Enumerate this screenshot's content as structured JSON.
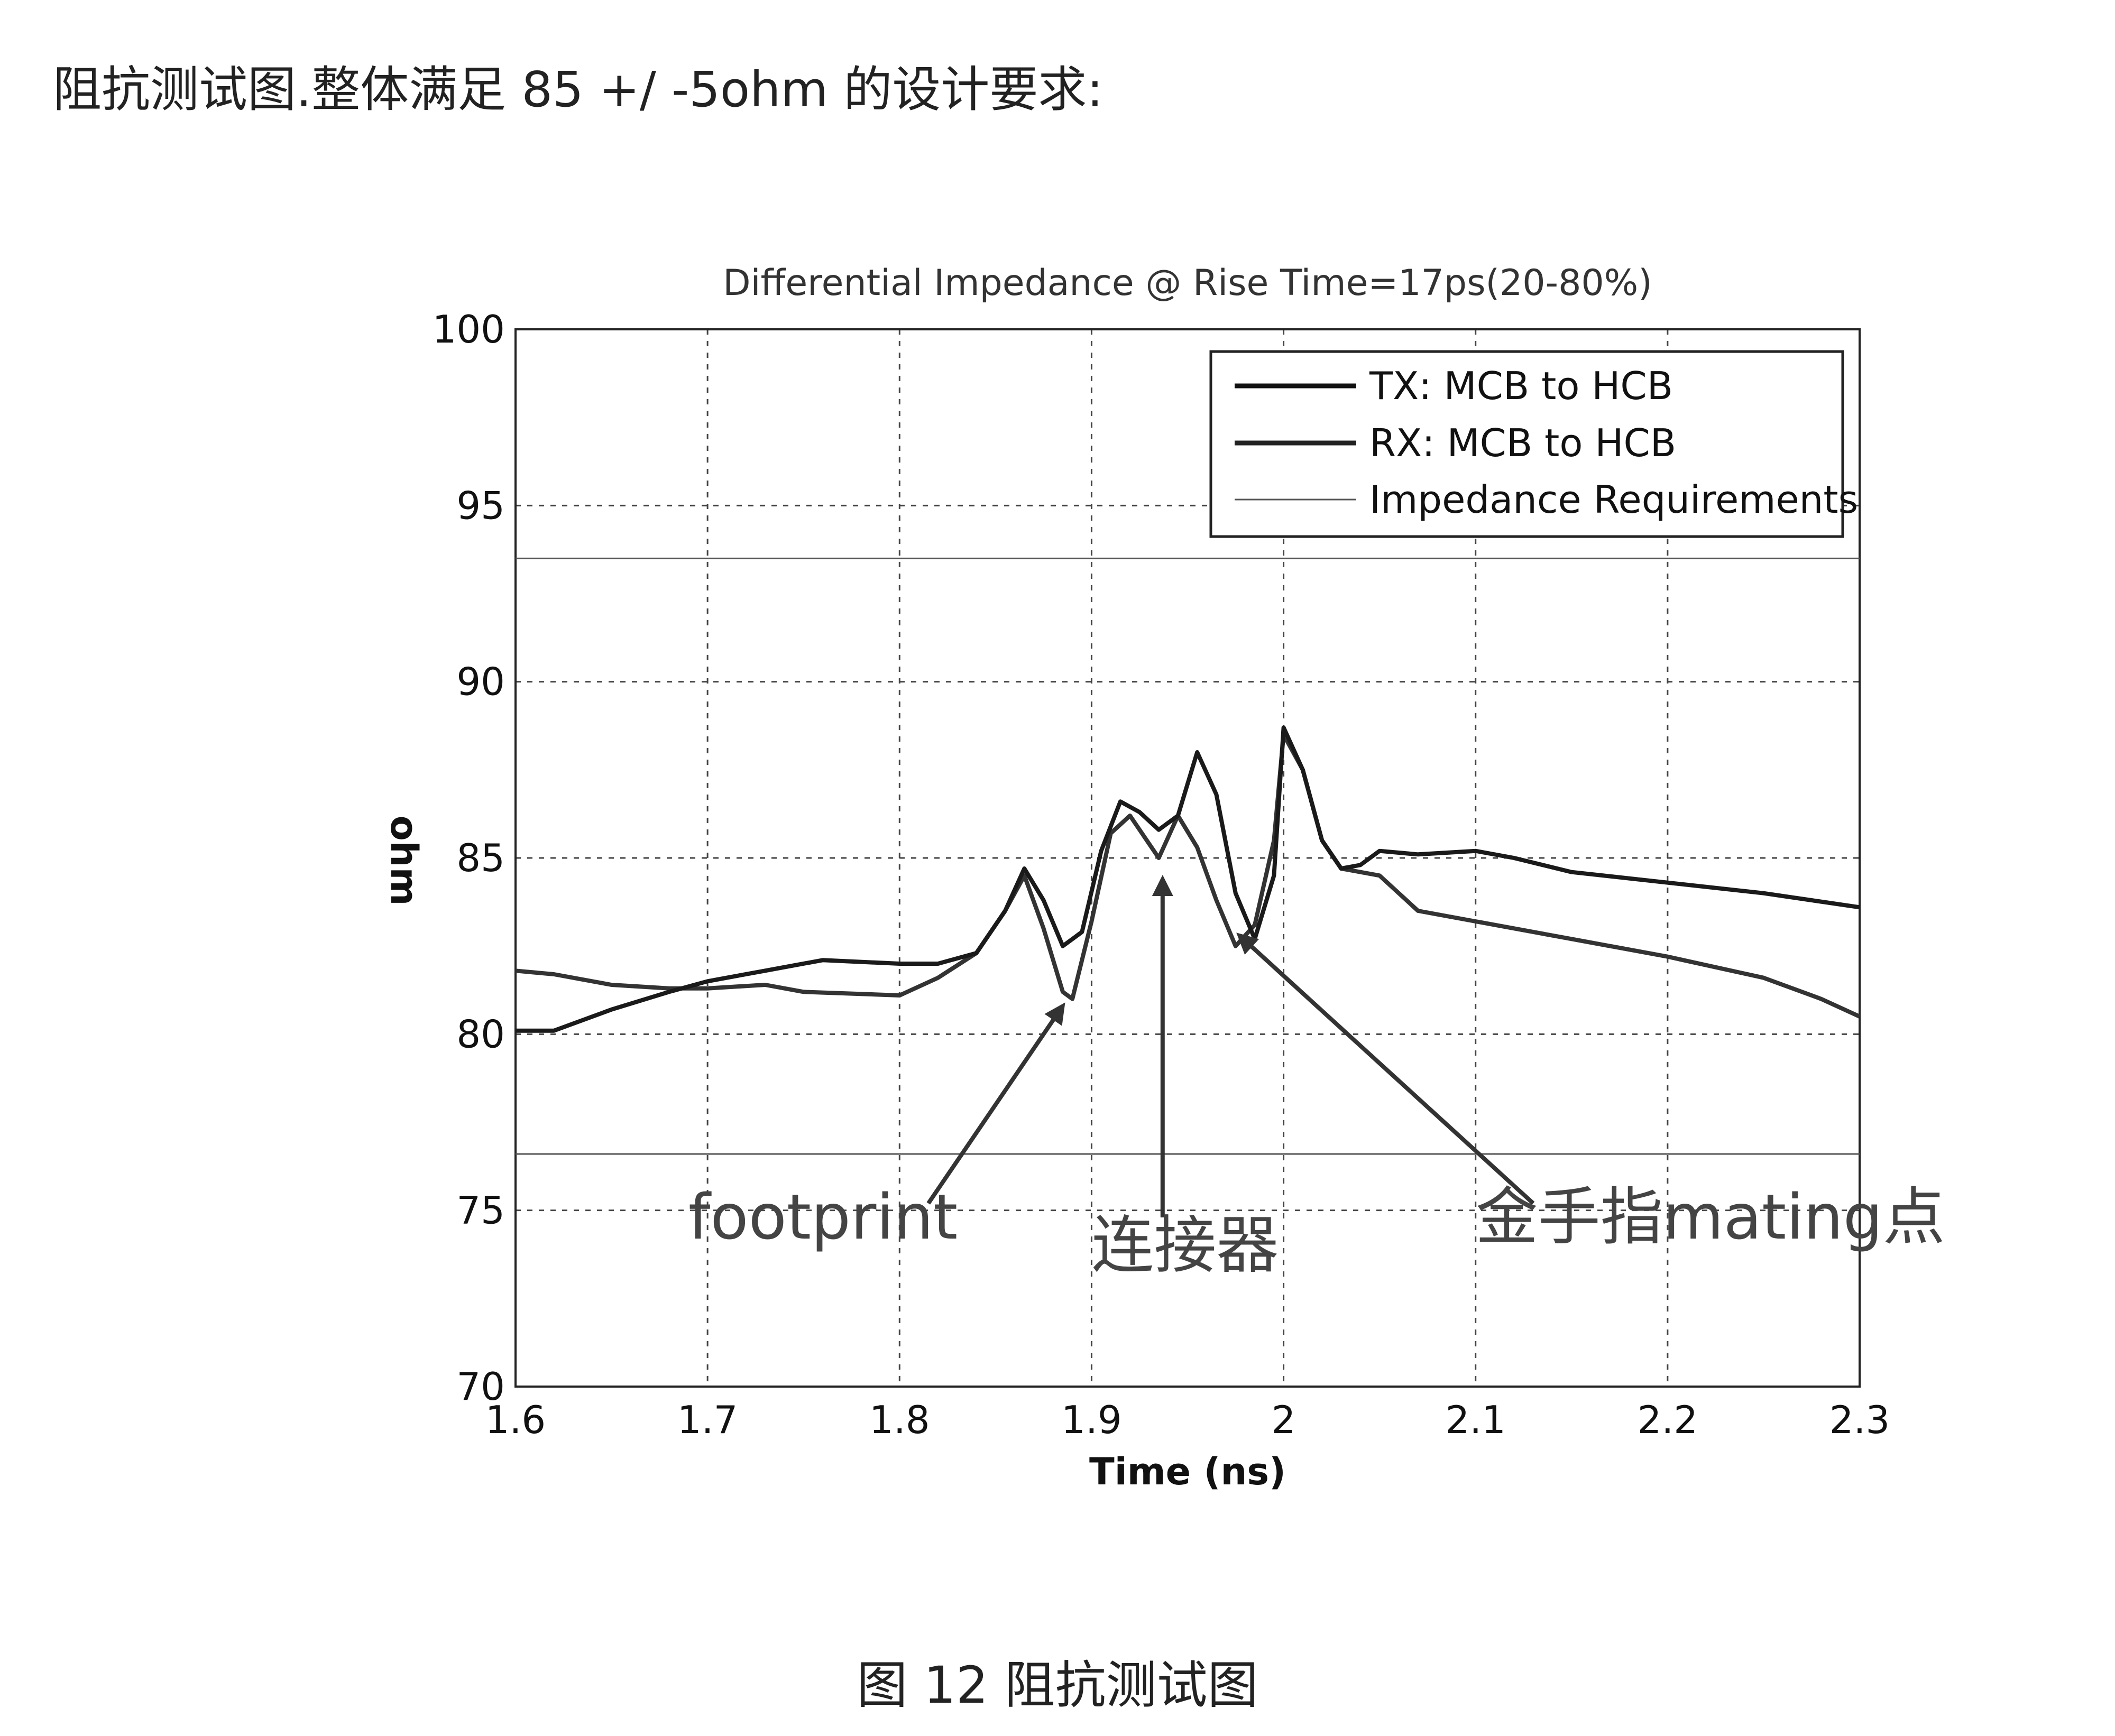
{
  "heading": "阻抗测试图.整体满足 85 +/ -5ohm 的设计要求:",
  "caption": "图 12 阻抗测试图",
  "chart_data": {
    "type": "line",
    "title": "Differential Impedance @ Rise Time=17ps(20-80%)",
    "xlabel": "Time (ns)",
    "ylabel": "ohm",
    "xlim": [
      1.6,
      2.3
    ],
    "ylim": [
      70,
      100
    ],
    "xticks": [
      "1.6",
      "1.7",
      "1.8",
      "1.9",
      "2",
      "2.1",
      "2.2",
      "2.3"
    ],
    "yticks": [
      "70",
      "75",
      "80",
      "85",
      "90",
      "95",
      "100"
    ],
    "grid": true,
    "legend_position": "top-right",
    "series": [
      {
        "name": "TX: MCB to HCB",
        "color": "#1a1a1a",
        "x": [
          1.6,
          1.62,
          1.65,
          1.68,
          1.7,
          1.73,
          1.76,
          1.8,
          1.82,
          1.84,
          1.855,
          1.865,
          1.875,
          1.885,
          1.895,
          1.905,
          1.915,
          1.925,
          1.935,
          1.945,
          1.955,
          1.965,
          1.975,
          1.985,
          1.995,
          2.0,
          2.01,
          2.02,
          2.03,
          2.04,
          2.05,
          2.07,
          2.1,
          2.12,
          2.15,
          2.2,
          2.25,
          2.3
        ],
        "y": [
          80.1,
          80.1,
          80.7,
          81.2,
          81.5,
          81.8,
          82.1,
          82.0,
          82.0,
          82.3,
          83.5,
          84.7,
          83.8,
          82.5,
          82.9,
          85.2,
          86.6,
          86.3,
          85.8,
          86.2,
          88.0,
          86.8,
          84.0,
          82.7,
          84.5,
          88.7,
          87.5,
          85.5,
          84.7,
          84.8,
          85.2,
          85.1,
          85.2,
          85.0,
          84.6,
          84.3,
          84.0,
          83.6
        ]
      },
      {
        "name": "RX: MCB to HCB",
        "color": "#333333",
        "x": [
          1.6,
          1.62,
          1.65,
          1.68,
          1.7,
          1.73,
          1.75,
          1.8,
          1.82,
          1.84,
          1.855,
          1.865,
          1.875,
          1.885,
          1.89,
          1.9,
          1.91,
          1.92,
          1.935,
          1.945,
          1.955,
          1.965,
          1.975,
          1.985,
          1.995,
          2.0,
          2.01,
          2.02,
          2.03,
          2.05,
          2.07,
          2.1,
          2.15,
          2.2,
          2.25,
          2.28,
          2.3
        ],
        "y": [
          81.8,
          81.7,
          81.4,
          81.3,
          81.3,
          81.4,
          81.2,
          81.1,
          81.6,
          82.3,
          83.5,
          84.5,
          83.0,
          81.2,
          81.0,
          83.2,
          85.7,
          86.2,
          85.0,
          86.2,
          85.3,
          83.8,
          82.5,
          83.1,
          85.5,
          88.5,
          87.5,
          85.5,
          84.7,
          84.5,
          83.5,
          83.2,
          82.7,
          82.2,
          81.6,
          81.0,
          80.5
        ]
      },
      {
        "name": "Impedance Requirements",
        "color": "#555555",
        "x": [
          1.6,
          2.3
        ],
        "y_lines": [
          93.5,
          76.6
        ]
      }
    ],
    "annotations": [
      {
        "text": "footprint",
        "x": 1.69,
        "y": 74.2,
        "arrow_to": [
          1.885,
          80.8
        ]
      },
      {
        "text": "连接器",
        "x": 1.9,
        "y": 73.4,
        "arrow_to": [
          1.937,
          84.4
        ]
      },
      {
        "text": "金手指mating点",
        "x": 2.1,
        "y": 74.2,
        "arrow_to": [
          1.977,
          82.8
        ]
      }
    ]
  }
}
